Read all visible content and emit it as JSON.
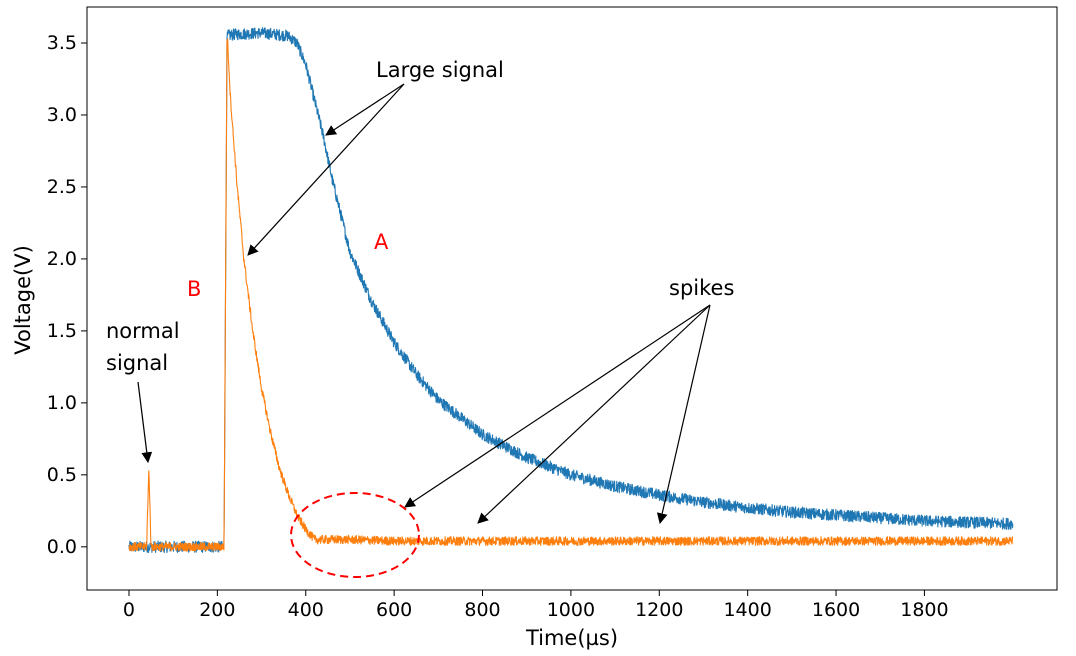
{
  "chart_data": {
    "type": "line",
    "title": "",
    "xlabel": "Time(µs)",
    "ylabel": "Voltage(V)",
    "xlim": [
      -95,
      2100
    ],
    "ylim": [
      -0.3,
      3.75
    ],
    "xticks": [
      0,
      200,
      400,
      600,
      800,
      1000,
      1200,
      1400,
      1600,
      1800
    ],
    "xtick_labels": [
      "0",
      "200",
      "400",
      "600",
      "800",
      "1000",
      "1200",
      "1400",
      "1600",
      "1800"
    ],
    "yticks": [
      0.0,
      0.5,
      1.0,
      1.5,
      2.0,
      2.5,
      3.0,
      3.5
    ],
    "ytick_labels": [
      "0.0",
      "0.5",
      "1.0",
      "1.5",
      "2.0",
      "2.5",
      "3.0",
      "3.5"
    ],
    "grid": false,
    "legend": "none",
    "series": [
      {
        "name": "A",
        "color": "#1f77b4",
        "x": [
          0,
          215,
          222,
          240,
          300,
          360,
          380,
          400,
          420,
          440,
          460,
          480,
          500,
          550,
          600,
          650,
          700,
          800,
          900,
          1000,
          1100,
          1200,
          1300,
          1400,
          1500,
          1600,
          1700,
          1800,
          1900,
          2000
        ],
        "y": [
          0.0,
          0.0,
          3.55,
          3.56,
          3.57,
          3.55,
          3.5,
          3.35,
          3.1,
          2.85,
          2.55,
          2.3,
          2.05,
          1.7,
          1.42,
          1.2,
          1.02,
          0.78,
          0.62,
          0.5,
          0.42,
          0.36,
          0.31,
          0.27,
          0.24,
          0.22,
          0.2,
          0.18,
          0.17,
          0.16
        ],
        "noise": 0.04
      },
      {
        "name": "B",
        "color": "#ff7f0e",
        "x": [
          0,
          40,
          45,
          50,
          215,
          222,
          230,
          245,
          260,
          280,
          300,
          320,
          340,
          360,
          380,
          400,
          420,
          500,
          600,
          800,
          1000,
          1200,
          1400,
          1600,
          1800,
          2000
        ],
        "y": [
          0.0,
          0.0,
          0.55,
          0.0,
          0.0,
          3.58,
          3.1,
          2.5,
          2.0,
          1.5,
          1.1,
          0.8,
          0.55,
          0.37,
          0.22,
          0.12,
          0.05,
          0.05,
          0.04,
          0.04,
          0.04,
          0.04,
          0.04,
          0.04,
          0.04,
          0.04
        ],
        "noise": 0.03
      }
    ],
    "annotations": {
      "large_signal": "Large signal",
      "spikes": "spikes",
      "normal_line1": "normal",
      "normal_line2": "signal",
      "label_a": "A",
      "label_b": "B"
    }
  }
}
